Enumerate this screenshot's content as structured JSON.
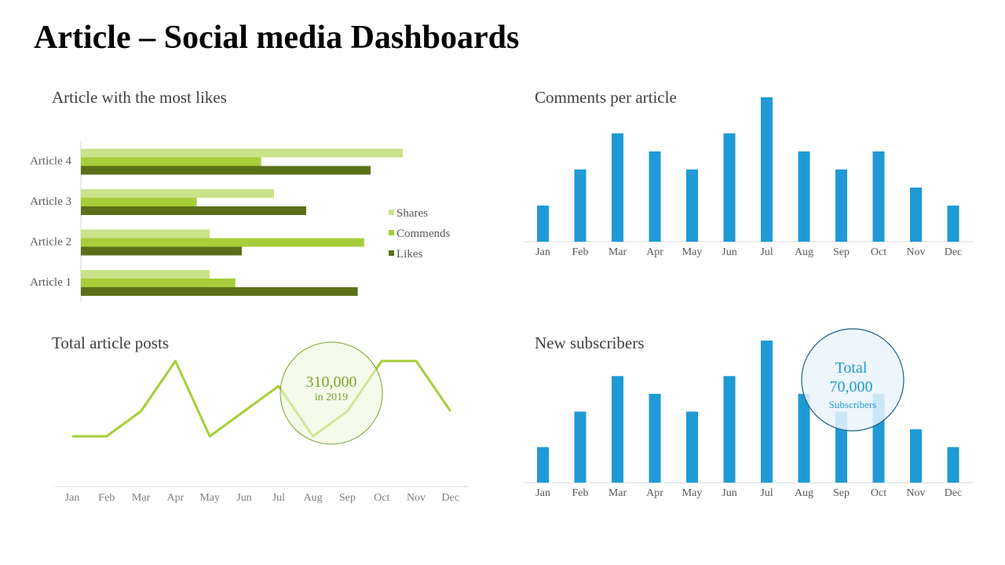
{
  "page": {
    "title": "Article – Social media Dashboards"
  },
  "colors": {
    "shares": "#c9e38a",
    "commends": "#a6ce39",
    "likes": "#5a7018",
    "blue": "#1f9ad6",
    "line": "#a6ce39",
    "axis_text": "#595959"
  },
  "chart_data": [
    {
      "id": "likes-chart",
      "type": "bar",
      "orientation": "horizontal",
      "title": "Article with the most likes",
      "categories": [
        "Article 1",
        "Article 2",
        "Article 3",
        "Article 4"
      ],
      "series": [
        {
          "name": "Shares",
          "values": [
            4.0,
            4.0,
            6.0,
            10.0
          ]
        },
        {
          "name": "Commends",
          "values": [
            4.8,
            8.8,
            3.6,
            5.6
          ]
        },
        {
          "name": "Likes",
          "values": [
            8.6,
            5.0,
            7.0,
            9.0
          ]
        }
      ],
      "xlim": [
        0,
        10.5
      ],
      "legend": "right"
    },
    {
      "id": "comments-chart",
      "type": "bar",
      "title": "Comments per article",
      "categories": [
        "Jan",
        "Feb",
        "Mar",
        "Apr",
        "May",
        "Jun",
        "Jul",
        "Aug",
        "Sep",
        "Oct",
        "Nov",
        "Dec"
      ],
      "values": [
        2,
        4,
        6,
        5,
        4,
        6,
        8,
        5,
        4,
        5,
        3,
        2
      ],
      "ylim": [
        0,
        8
      ]
    },
    {
      "id": "posts-chart",
      "type": "line",
      "title": "Total article posts",
      "categories": [
        "Jan",
        "Feb",
        "Mar",
        "Apr",
        "May",
        "Jun",
        "Jul",
        "Aug",
        "Sep",
        "Oct",
        "Nov",
        "Dec"
      ],
      "values": [
        2,
        2,
        3,
        5,
        2,
        3,
        4,
        2,
        3,
        5,
        5,
        3
      ],
      "ylim": [
        0,
        5
      ],
      "annotation": {
        "value": "310,000",
        "caption": "in 2019"
      }
    },
    {
      "id": "subscribers-chart",
      "type": "bar",
      "title": "New subscribers",
      "categories": [
        "Jan",
        "Feb",
        "Mar",
        "Apr",
        "May",
        "Jun",
        "Jul",
        "Aug",
        "Sep",
        "Oct",
        "Nov",
        "Dec"
      ],
      "values": [
        2,
        4,
        6,
        5,
        4,
        6,
        8,
        5,
        4,
        5,
        3,
        2
      ],
      "ylim": [
        0,
        8
      ],
      "annotation": {
        "line1": "Total",
        "value": "70,000",
        "caption": "Subscribers"
      }
    }
  ]
}
